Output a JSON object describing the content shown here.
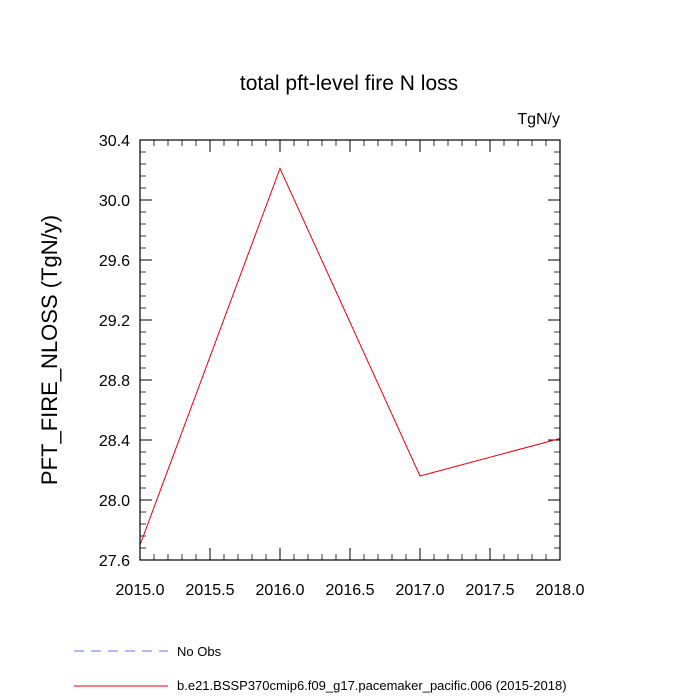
{
  "chart_data": {
    "type": "line",
    "title": "total pft-level fire N loss",
    "units_label": "TgN/y",
    "ylabel": "PFT_FIRE_NLOSS  (TgN/y)",
    "xlabel": "",
    "xlim": [
      2015.0,
      2018.0
    ],
    "ylim": [
      27.6,
      30.4
    ],
    "x_ticks": [
      "2015.0",
      "2015.5",
      "2016.0",
      "2016.5",
      "2017.0",
      "2017.5",
      "2018.0"
    ],
    "y_ticks": [
      "27.6",
      "28.0",
      "28.4",
      "28.8",
      "29.2",
      "29.6",
      "30.0",
      "30.4"
    ],
    "series": [
      {
        "name": "b.e21.BSSP370cmip6.f09_g17.pacemaker_pacific.006 (2015-2018)",
        "color": "#e8000b",
        "x": [
          2015.0,
          2016.0,
          2017.0,
          2018.0
        ],
        "values": [
          27.7,
          30.21,
          28.16,
          28.41
        ]
      }
    ],
    "legend": [
      {
        "label": "No Obs",
        "color": "#6f6fff",
        "style": "dashed"
      },
      {
        "label": "b.e21.BSSP370cmip6.f09_g17.pacemaker_pacific.006 (2015-2018)",
        "color": "#e8000b",
        "style": "solid"
      }
    ]
  }
}
